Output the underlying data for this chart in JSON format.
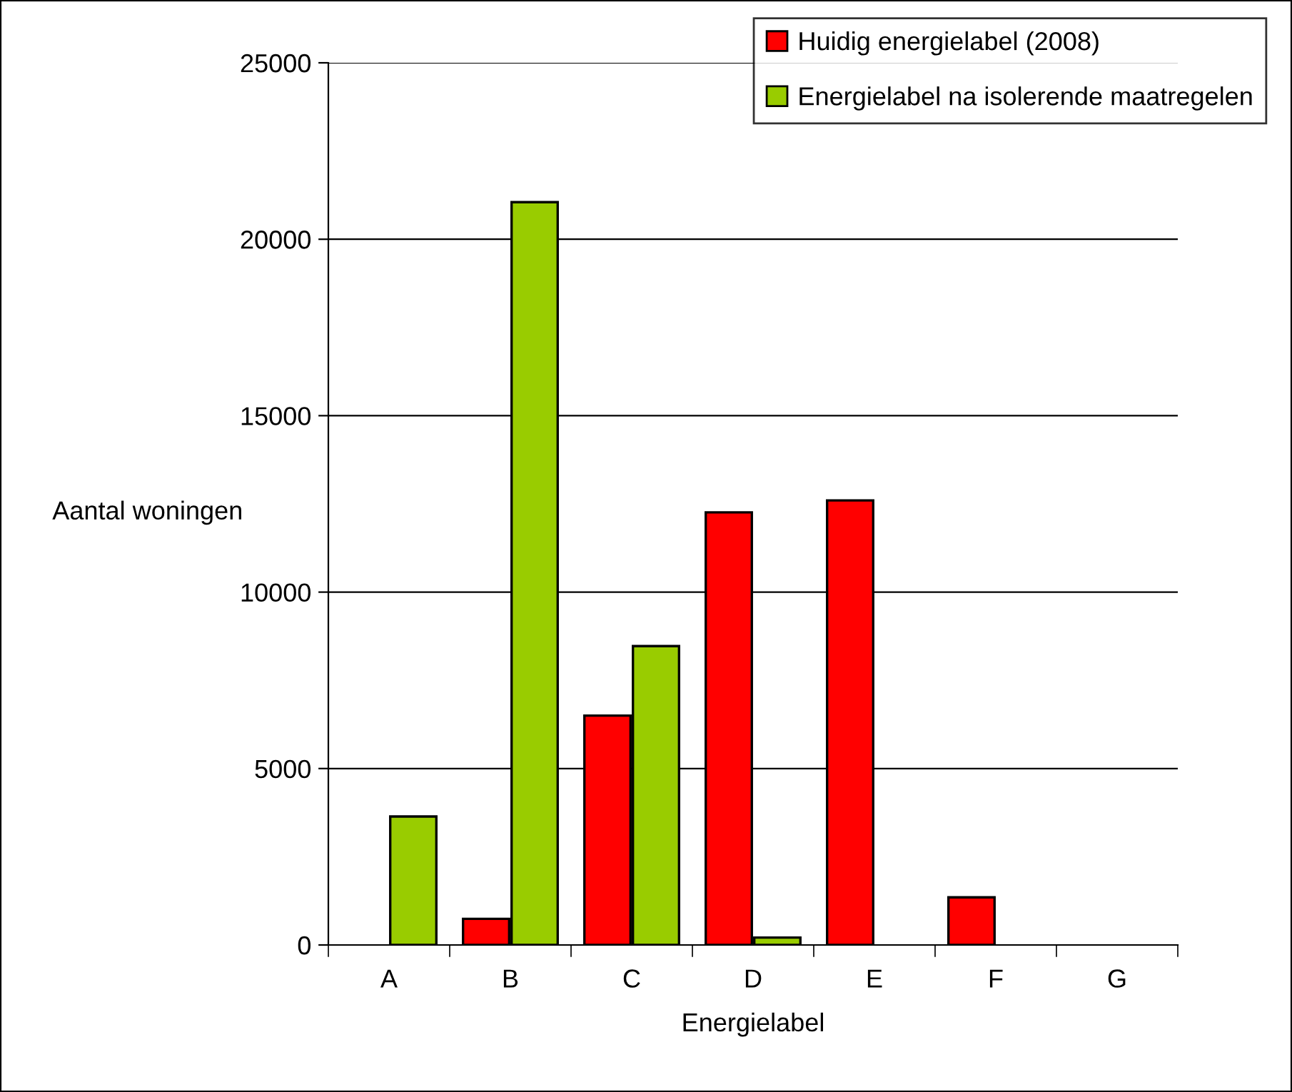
{
  "chart_data": {
    "type": "bar",
    "xlabel": "Energielabel",
    "ylabel": "Aantal woningen",
    "categories": [
      "A",
      "B",
      "C",
      "D",
      "E",
      "F",
      "G"
    ],
    "series": [
      {
        "name": "Huidig energielabel (2008)",
        "color": "#ff0000",
        "values": [
          0,
          740,
          6500,
          12260,
          12600,
          1350,
          0
        ]
      },
      {
        "name": "Energielabel na isolerende maatregelen",
        "color": "#99cc00",
        "values": [
          3640,
          21050,
          8470,
          210,
          0,
          0,
          0
        ]
      }
    ],
    "ylim": [
      0,
      25000
    ],
    "yticks": [
      0,
      5000,
      10000,
      15000,
      20000,
      25000
    ],
    "grid": "y",
    "legend": "top right"
  }
}
